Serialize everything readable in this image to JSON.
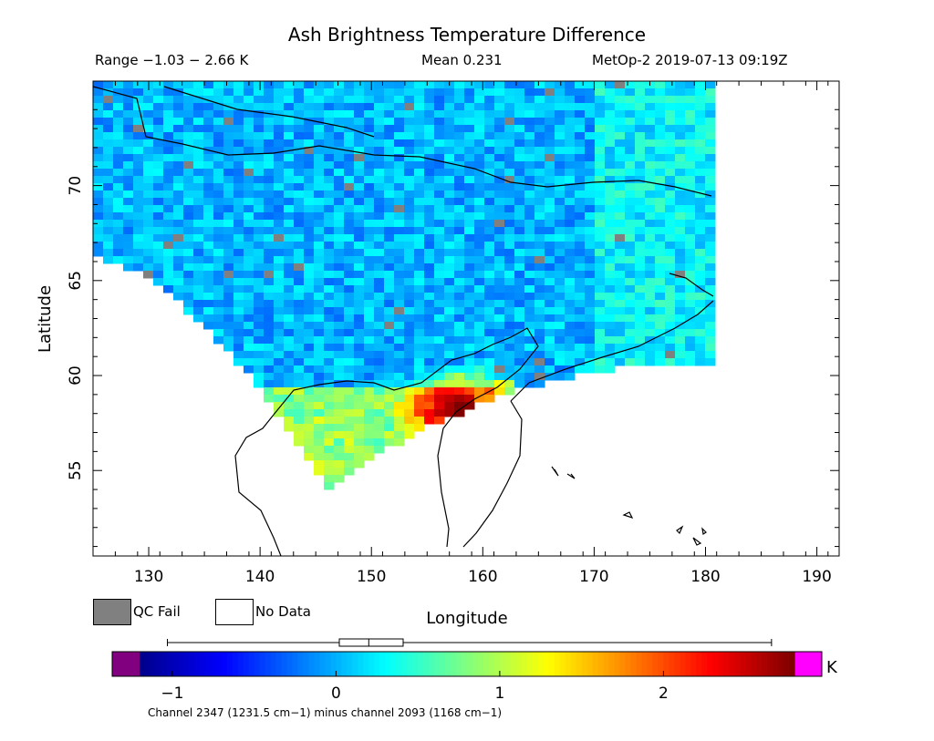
{
  "title": "Ash Brightness Temperature Difference",
  "header": {
    "range": "Range −1.03 − 2.66 K",
    "mean": "Mean 0.231",
    "source": "MetOp-2 2019-07-13 09:19Z"
  },
  "legend": {
    "qc_fail_label": "QC Fail",
    "qc_fail_color": "#808080",
    "no_data_label": "No Data",
    "no_data_color": "#ffffff"
  },
  "colorbar": {
    "unit": "K",
    "caption": "Channel 2347 (1231.5 cm−1) minus channel 2093 (1168 cm−1)",
    "range": [
      -1.2,
      2.8
    ],
    "ticks": [
      {
        "value": -1,
        "label": "−1"
      },
      {
        "value": 0,
        "label": "0"
      },
      {
        "value": 1,
        "label": "1"
      },
      {
        "value": 2,
        "label": "2"
      }
    ],
    "below_color": "#800080",
    "above_color": "#ff00ff",
    "colormap": [
      "#00008f",
      "#0000ff",
      "#0080ff",
      "#00ffff",
      "#80ff80",
      "#ffff00",
      "#ff8000",
      "#ff0000",
      "#800000"
    ],
    "boxplot": {
      "min": -1.03,
      "q1": 0.02,
      "median": 0.2,
      "q3": 0.41,
      "max": 2.66
    }
  },
  "chart_data": {
    "type": "heatmap",
    "title": "Ash Brightness Temperature Difference",
    "xlabel": "Longitude",
    "ylabel": "Latitude",
    "xlim": [
      125,
      192
    ],
    "ylim": [
      50.5,
      75.5
    ],
    "xticks": [
      130,
      140,
      150,
      160,
      170,
      180,
      190
    ],
    "yticks": [
      55,
      60,
      65,
      70
    ],
    "value_range": [
      -1.03,
      2.66
    ],
    "mean": 0.231,
    "units": "K",
    "swath": {
      "lon_min": 125,
      "lon_max": 180.5,
      "lat_max": 75.5
    },
    "hotspot": {
      "lon": 157.5,
      "lat": 58.2,
      "value": 2.66
    },
    "qc_fail_present": true
  }
}
